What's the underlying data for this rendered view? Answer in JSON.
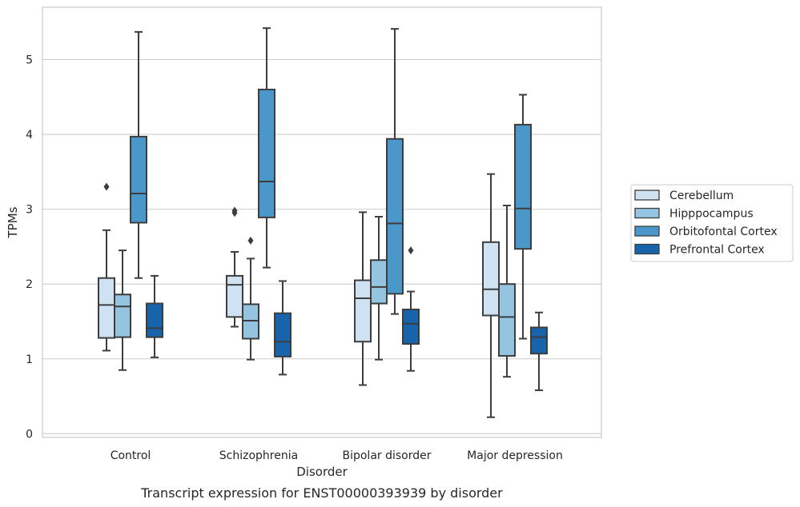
{
  "chart_data": {
    "type": "box",
    "title": "",
    "caption": "Transcript expression for ENST00000393939 by disorder",
    "xlabel": "Disorder",
    "ylabel": "TPMs",
    "ylim": [
      -0.05,
      5.7
    ],
    "yticks": [
      0,
      1,
      2,
      3,
      4,
      5
    ],
    "grid": true,
    "legend_position": "right",
    "categories": [
      "Control",
      "Schizophrenia",
      "Bipolar disorder",
      "Major depression"
    ],
    "series": [
      {
        "name": "Cerebellum",
        "color": "#d0e1f2",
        "boxes": [
          {
            "whislo": 1.11,
            "q1": 1.28,
            "med": 1.72,
            "q3": 2.08,
            "whishi": 2.72,
            "fliers": [
              3.3
            ]
          },
          {
            "whislo": 1.43,
            "q1": 1.56,
            "med": 1.99,
            "q3": 2.11,
            "whishi": 2.43,
            "fliers": [
              2.95,
              2.98
            ]
          },
          {
            "whislo": 0.65,
            "q1": 1.23,
            "med": 1.81,
            "q3": 2.05,
            "whishi": 2.96,
            "fliers": []
          },
          {
            "whislo": 0.22,
            "q1": 1.58,
            "med": 1.93,
            "q3": 2.56,
            "whishi": 3.47,
            "fliers": []
          }
        ]
      },
      {
        "name": "Hipppocampus",
        "color": "#94c4df",
        "boxes": [
          {
            "whislo": 0.85,
            "q1": 1.29,
            "med": 1.7,
            "q3": 1.86,
            "whishi": 2.45,
            "fliers": []
          },
          {
            "whislo": 0.99,
            "q1": 1.27,
            "med": 1.51,
            "q3": 1.73,
            "whishi": 2.34,
            "fliers": [
              2.58
            ]
          },
          {
            "whislo": 0.99,
            "q1": 1.74,
            "med": 1.96,
            "q3": 2.32,
            "whishi": 2.9,
            "fliers": []
          },
          {
            "whislo": 0.76,
            "q1": 1.04,
            "med": 1.56,
            "q3": 2.0,
            "whishi": 3.05,
            "fliers": []
          }
        ]
      },
      {
        "name": "Orbitofontal Cortex",
        "color": "#4a98c9",
        "boxes": [
          {
            "whislo": 2.08,
            "q1": 2.82,
            "med": 3.21,
            "q3": 3.97,
            "whishi": 5.37,
            "fliers": []
          },
          {
            "whislo": 2.22,
            "q1": 2.89,
            "med": 3.37,
            "q3": 4.6,
            "whishi": 5.42,
            "fliers": []
          },
          {
            "whislo": 1.6,
            "q1": 1.87,
            "med": 2.81,
            "q3": 3.94,
            "whishi": 5.41,
            "fliers": []
          },
          {
            "whislo": 1.27,
            "q1": 2.47,
            "med": 3.01,
            "q3": 4.13,
            "whishi": 4.53,
            "fliers": []
          }
        ]
      },
      {
        "name": "Prefrontal Cortex",
        "color": "#1764ab",
        "boxes": [
          {
            "whislo": 1.02,
            "q1": 1.29,
            "med": 1.41,
            "q3": 1.74,
            "whishi": 2.11,
            "fliers": []
          },
          {
            "whislo": 0.79,
            "q1": 1.03,
            "med": 1.23,
            "q3": 1.61,
            "whishi": 2.04,
            "fliers": []
          },
          {
            "whislo": 0.84,
            "q1": 1.2,
            "med": 1.47,
            "q3": 1.66,
            "whishi": 1.9,
            "fliers": [
              2.45
            ]
          },
          {
            "whislo": 0.58,
            "q1": 1.07,
            "med": 1.29,
            "q3": 1.42,
            "whishi": 1.62,
            "fliers": []
          }
        ]
      }
    ]
  }
}
